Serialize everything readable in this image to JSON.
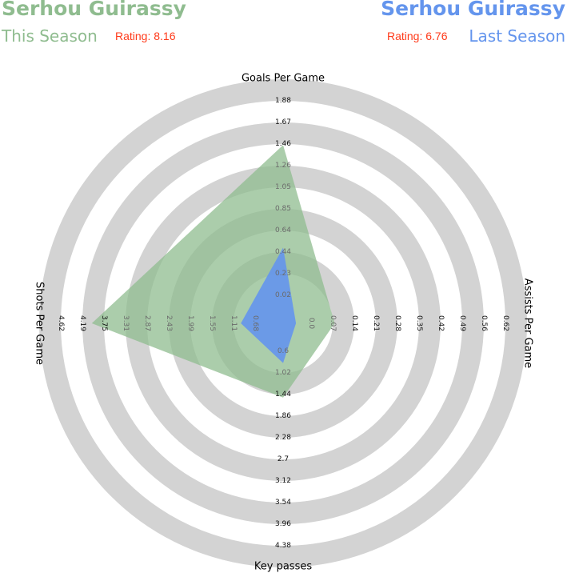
{
  "header": {
    "left": {
      "player": "Serhou Guirassy",
      "season": "This Season",
      "rating": "Rating: 8.16"
    },
    "right": {
      "player": "Serhou Guirassy",
      "season": "Last Season",
      "rating": "Rating: 6.76"
    }
  },
  "colors": {
    "this_season": "#8fbc8f",
    "last_season": "#6495ed",
    "rating": "#ff3a1a",
    "ring": "#d3d3d3"
  },
  "chart_data": {
    "type": "radar",
    "title": "",
    "grid": true,
    "axes": [
      {
        "label": "Goals Per Game",
        "ticks": [
          "0.02",
          "0.23",
          "0.44",
          "0.64",
          "0.85",
          "1.05",
          "1.26",
          "1.46",
          "1.67",
          "1.88"
        ],
        "range": [
          -0.18,
          1.88
        ]
      },
      {
        "label": "Assists Per Game",
        "ticks": [
          "0.0",
          "0.07",
          "0.14",
          "0.21",
          "0.28",
          "0.35",
          "0.42",
          "0.49",
          "0.56",
          "0.62"
        ],
        "range": [
          -0.07,
          0.62
        ]
      },
      {
        "label": "Key passes",
        "ticks": [
          "0.6",
          "1.02",
          "1.44",
          "1.86",
          "2.28",
          "2.7",
          "3.12",
          "3.54",
          "3.96",
          "4.38"
        ],
        "range": [
          0.18,
          4.38
        ]
      },
      {
        "label": "Shots Per Game",
        "ticks": [
          "0.68",
          "1.11",
          "1.55",
          "1.99",
          "2.43",
          "2.87",
          "3.31",
          "3.75",
          "4.19",
          "4.62"
        ],
        "range": [
          0.25,
          4.62
        ]
      }
    ],
    "series": [
      {
        "name": "This Season",
        "values": [
          1.47,
          0.09,
          1.58,
          4.01
        ]
      },
      {
        "name": "Last Season",
        "values": [
          0.52,
          -0.03,
          0.93,
          1.08
        ]
      }
    ]
  }
}
